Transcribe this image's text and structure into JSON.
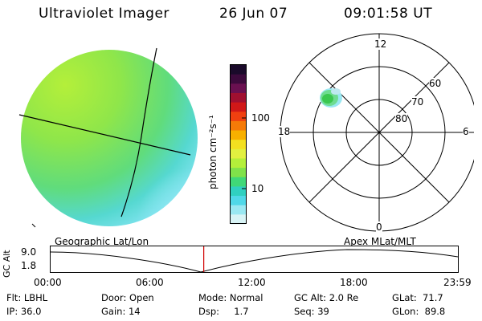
{
  "header": {
    "title": "Ultraviolet Imager",
    "date": "26 Jun 07",
    "time": "09:01:58 UT"
  },
  "colorbar": {
    "unit_label": "photon cm⁻²s⁻¹",
    "ticks": [
      "100",
      "10"
    ],
    "colors": [
      "#1a0a2a",
      "#3c0a3c",
      "#6a1050",
      "#a01030",
      "#d01818",
      "#f04010",
      "#f57a08",
      "#f8b000",
      "#f3e020",
      "#e2f040",
      "#b4ef3a",
      "#80e24a",
      "#40d878",
      "#30d0c0",
      "#50d8e8",
      "#9ae8f2",
      "#d8f4f6"
    ]
  },
  "polar_grid": {
    "mlt_labels": [
      "12",
      "18",
      "6",
      "0"
    ],
    "mlat_labels": [
      "60",
      "70",
      "80"
    ]
  },
  "timeline": {
    "left_label": "Geographic Lat/Lon",
    "right_label": "Apex MLat/MLT",
    "y_axis_label": "GC Alt",
    "y_ticks": [
      "9.0",
      "1.8"
    ],
    "x_ticks": [
      "00:00",
      "06:00",
      "12:00",
      "18:00",
      "23:59"
    ],
    "current_time_fraction": 0.376
  },
  "info": {
    "flt": "Flt: LBHL",
    "ip": "IP: 36.0",
    "door": "Door: Open",
    "gain": "Gain: 14",
    "mode": "Mode: Normal",
    "dsp": "Dsp:     1.7",
    "gcalt": "GC Alt: 2.0 Re",
    "seq": "Seq: 39",
    "glat": "GLat:  71.7",
    "glon": "GLon:  89.8"
  }
}
